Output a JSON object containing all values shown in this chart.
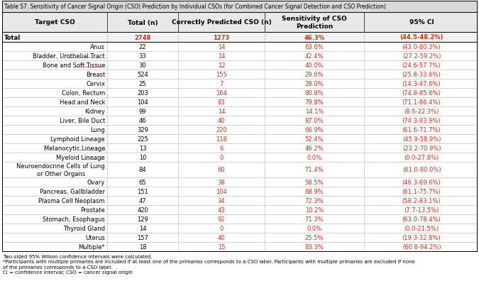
{
  "title": "Table S7. Sensitivity of Cancer Signal Origin (CSO) Prediction by Individual CSOs (for Combined Cancer Signal Detection and CSO Prediction)",
  "col_headers": [
    "Target CSO",
    "Total (n)",
    "Correctly Predicted CSO (n)",
    "Sensitivity of CSO\nPrediction",
    "95% CI"
  ],
  "rows": [
    [
      "Total",
      "2748",
      "1273",
      "46.3%",
      "(44.5-48.2%)"
    ],
    [
      "Anus",
      "22",
      "14",
      "63.6%",
      "(43.0-80.3%)"
    ],
    [
      "Bladder, Urothelial Tract",
      "33",
      "14",
      "42.4%",
      "(27.2-59.2%)"
    ],
    [
      "Bone and Soft Tissue",
      "30",
      "12",
      "40.0%",
      "(24.6-57.7%)"
    ],
    [
      "Breast",
      "524",
      "155",
      "29.6%",
      "(25.8-33.6%)"
    ],
    [
      "Cervix",
      "25",
      "7",
      "28.0%",
      "(14.3-47.6%)"
    ],
    [
      "Colon, Rectum",
      "203",
      "164",
      "80.8%",
      "(74.8-85.6%)"
    ],
    [
      "Head and Neck",
      "104",
      "83",
      "79.8%",
      "(71.1-86.4%)"
    ],
    [
      "Kidney",
      "99",
      "14",
      "14.1%",
      "(8.6-22.3%)"
    ],
    [
      "Liver, Bile Duct",
      "46",
      "40",
      "87.0%",
      "(74.3-93.9%)"
    ],
    [
      "Lung",
      "329",
      "220",
      "66.9%",
      "(61.6-71.7%)"
    ],
    [
      "Lymphoid Lineage",
      "225",
      "118",
      "52.4%",
      "(45.9-58.9%)"
    ],
    [
      "Melanocytic Lineage",
      "13",
      "6",
      "46.2%",
      "(23.2-70.9%)"
    ],
    [
      "Myeloid Lineage",
      "10",
      "0",
      "0.0%",
      "(0.0-27.8%)"
    ],
    [
      "Neuroendocrine Cells of Lung\nor Other Organs",
      "84",
      "60",
      "71.4%",
      "(61.0-80.0%)"
    ],
    [
      "Ovary",
      "65",
      "38",
      "58.5%",
      "(46.3-69.6%)"
    ],
    [
      "Pancreas, Gallbladder",
      "151",
      "104",
      "68.9%",
      "(61.1-75.7%)"
    ],
    [
      "Plasma Cell Neoplasm",
      "47",
      "34",
      "72.3%",
      "(58.2-83.1%)"
    ],
    [
      "Prostate",
      "420",
      "43",
      "10.2%",
      "(7.7-13.5%)"
    ],
    [
      "Stomach, Esophagus",
      "129",
      "92",
      "71.3%",
      "(63.0-78.4%)"
    ],
    [
      "Thyroid Gland",
      "14",
      "0",
      "0.0%",
      "(0.0-21.5%)"
    ],
    [
      "Uterus",
      "157",
      "40",
      "25.5%",
      "(19.3-32.8%)"
    ],
    [
      "Multiple*",
      "18",
      "15",
      "83.3%",
      "(60.8-94.2%)"
    ]
  ],
  "underlined_names": [
    "Bladder, Urothelial Tract",
    "Bone and Soft Tissue",
    "Melanocytic Lineage",
    "Myeloid Lineage"
  ],
  "footnotes": [
    "Two-sided 95% Wilson confidence intervals were calculated.",
    "*Participants with multiple primaries are included if at least one of the primaries corresponds to a CSO label. Participants with multiple primaries are excluded if none",
    "of the primaries corresponds to a CSO label.",
    "CI = confidence interval; CSO = cancer signal origin"
  ],
  "color_orange": "#c8311a",
  "color_black": "#000000",
  "color_header_bg": "#d9d9d9",
  "color_col_header_bg": "#e8e8e8",
  "color_total_bg": "#f2f2f2",
  "color_row_bg": "#ffffff",
  "color_border": "#a0a0a0",
  "title_fontsize": 5.5,
  "header_fontsize": 6.5,
  "row_fontsize": 6.0,
  "footnote_fontsize": 5.0
}
